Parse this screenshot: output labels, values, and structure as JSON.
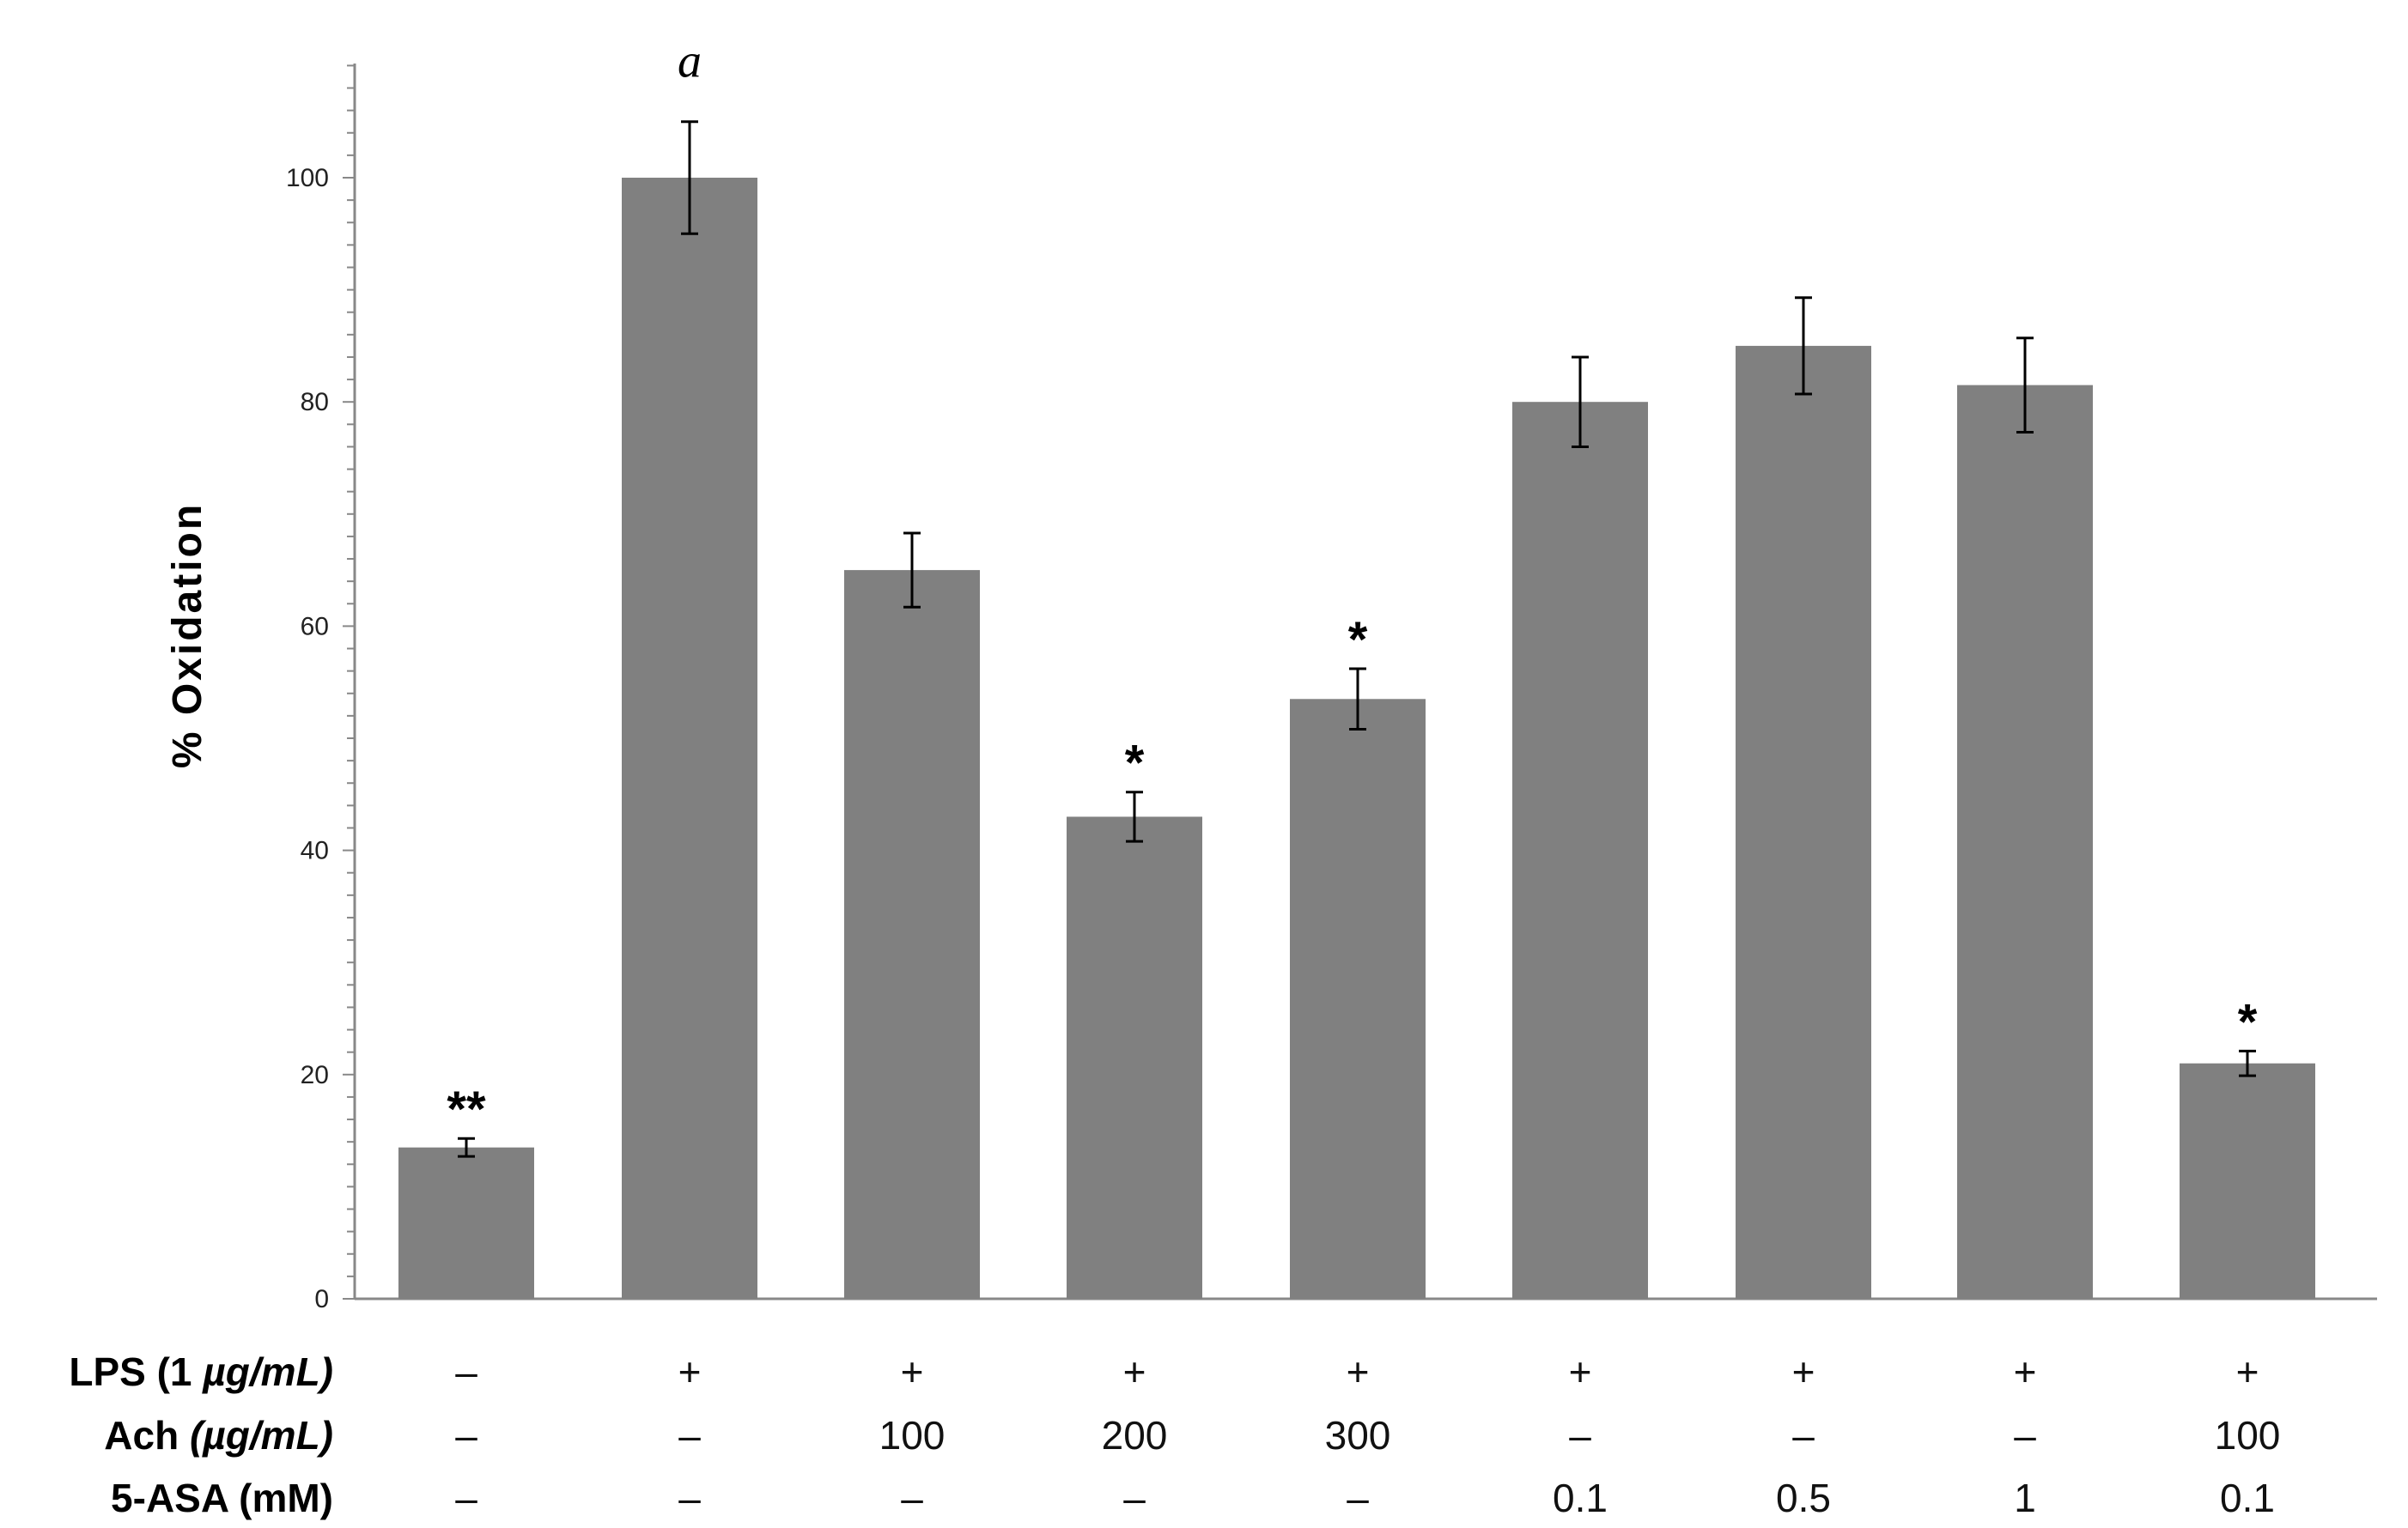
{
  "chart_data": {
    "type": "bar",
    "ylabel": "% Oxidation",
    "xlabel": "",
    "ylim": [
      0,
      110
    ],
    "yticks": [
      0,
      20,
      40,
      60,
      80,
      100
    ],
    "grid": false,
    "bar_color": "#808080",
    "values": [
      13.5,
      100,
      65,
      43,
      53.5,
      80,
      85,
      81.5,
      21
    ],
    "errors": [
      0.8,
      5,
      3.3,
      2.2,
      2.7,
      4,
      4.3,
      4.2,
      1.1
    ],
    "annotations": [
      "**",
      "a",
      "",
      "*",
      "*",
      "",
      "",
      "",
      "*"
    ],
    "row_labels": {
      "lps": {
        "prefix": "LPS (1 ",
        "italic": "µg/mL)"
      },
      "ach": {
        "prefix": "Ach ",
        "italic": "(µg/mL)"
      },
      "asa": {
        "prefix": "5-ASA (mM)",
        "italic": ""
      }
    },
    "conditions": {
      "lps": [
        "–",
        "+",
        "+",
        "+",
        "+",
        "+",
        "+",
        "+",
        "+"
      ],
      "ach": [
        "–",
        "–",
        "100",
        "200",
        "300",
        "–",
        "–",
        "–",
        "100"
      ],
      "asa": [
        "–",
        "–",
        "–",
        "–",
        "–",
        "0.1",
        "0.5",
        "1",
        "0.1"
      ]
    }
  }
}
